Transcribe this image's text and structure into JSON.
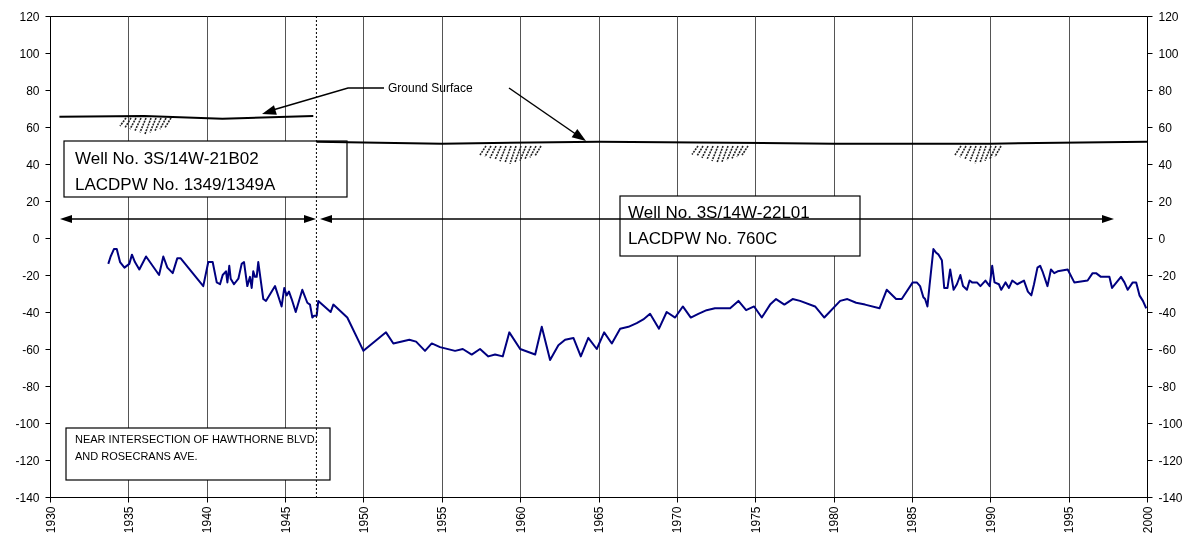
{
  "chart_data": {
    "type": "line",
    "annotations": [
      "Ground Surface",
      "Well No. 3S/14W-21B02\nLACDPW No. 1349/1349A",
      "Well No. 3S/14W-22L01\nLACDPW No. 760C",
      "NEAR  INTERSECTION OF HAWTHORNE BLVD.\nAND ROSECRANS AVE."
    ],
    "series": [
      {
        "color": "#000080",
        "x": [
          1933.72,
          1933.87,
          1934.08,
          1934.26,
          1934.47,
          1934.75,
          1935.06,
          1935.23,
          1935.42,
          1935.7,
          1936.13,
          1936.96,
          1937.23,
          1937.49,
          1937.83,
          1938.12,
          1938.34,
          1939.78,
          1940.1,
          1940.38,
          1940.64,
          1940.85,
          1941.02,
          1941.23,
          1941.32,
          1941.44,
          1941.53,
          1941.74,
          1942.02,
          1942.23,
          1942.38,
          1942.59,
          1942.76,
          1942.87,
          1942.97,
          1943.08,
          1943.19,
          1943.29,
          1943.61,
          1943.78,
          1944.36,
          1944.78,
          1944.95,
          1945.1,
          1945.25,
          1945.42,
          1945.68,
          1946.1,
          1946.42,
          1946.59,
          1946.74,
          1946.85,
          1947.02,
          1947.12,
          1947.91,
          1948.08,
          1948.97,
          1950,
          1951.44,
          1951.91,
          1952.93,
          1953.36,
          1953.93,
          1954.36,
          1954.89,
          1955.85,
          1956.34,
          1956.91,
          1957.44,
          1957.97,
          1958.4,
          1958.89,
          1959.31,
          1960,
          1960.96,
          1961.38,
          1961.91,
          1962.44,
          1962.87,
          1963.4,
          1963.87,
          1964.35,
          1964.89,
          1965.36,
          1965.85,
          1966.38,
          1966.91,
          1967.44,
          1967.86,
          1968.29,
          1968.86,
          1969.35,
          1969.89,
          1970.38,
          1970.89,
          1971.37,
          1971.9,
          1972.43,
          1973.4,
          1973.93,
          1974.42,
          1974.93,
          1975.42,
          1975.95,
          1976.33,
          1976.86,
          1977.39,
          1977.86,
          1978.82,
          1979.41,
          1980.42,
          1980.88,
          1981.44,
          1982.01,
          1982.93,
          1983.39,
          1983.99,
          1984.35,
          1985.05,
          1985.31,
          1985.52,
          1985.73,
          1985.84,
          1985.99,
          1986.12,
          1986.37,
          1986.55,
          1986.7,
          1986.91,
          1987.06,
          1987.27,
          1987.44,
          1987.66,
          1987.87,
          1988.09,
          1988.26,
          1988.51,
          1988.68,
          1988.84,
          1989.15,
          1989.37,
          1989.69,
          1989.96,
          1990.12,
          1990.27,
          1990.55,
          1990.7,
          1990.97,
          1991.19,
          1991.4,
          1991.72,
          1992.15,
          1992.4,
          1992.62,
          1992.79,
          1993.01,
          1993.18,
          1993.33,
          1993.65,
          1993.87,
          1994.08,
          1994.3,
          1994.94,
          1995.36,
          1996.21,
          1996.53,
          1996.75,
          1997.06,
          1997.6,
          1997.77,
          1998.34,
          1998.56,
          1998.77,
          1999.09,
          1999.31,
          1999.52,
          1999.74,
          1999.95
        ],
        "values": [
          -14,
          -10,
          -6,
          -6,
          -13,
          -16,
          -14,
          -9,
          -13,
          -17,
          -10,
          -20,
          -10,
          -16,
          -19,
          -11,
          -11,
          -26,
          -13,
          -13,
          -24,
          -25,
          -20,
          -18,
          -24,
          -15,
          -22,
          -25,
          -22,
          -14,
          -13,
          -26,
          -21,
          -27,
          -18,
          -21,
          -21,
          -13,
          -33,
          -34,
          -26,
          -37,
          -27,
          -31,
          -29,
          -33,
          -40,
          -28,
          -35,
          -36,
          -43,
          -42,
          -42,
          -34,
          -40,
          -36,
          -43,
          -61,
          -51,
          -57,
          -55,
          -56,
          -61,
          -57,
          -59,
          -61,
          -60,
          -63,
          -60,
          -64,
          -63,
          -64,
          -51,
          -60,
          -63,
          -48,
          -66,
          -58,
          -55,
          -54,
          -64,
          -54,
          -60,
          -51,
          -57,
          -49,
          -48,
          -46,
          -44,
          -41,
          -49,
          -40,
          -43,
          -37,
          -43,
          -41,
          -39,
          -38,
          -38,
          -34,
          -39,
          -37,
          -43,
          -36,
          -33,
          -36,
          -33,
          -34,
          -37,
          -43,
          -34,
          -33,
          -35,
          -36,
          -38,
          -28,
          -33,
          -33,
          -24,
          -24,
          -26,
          -32,
          -33,
          -37,
          -26,
          -6,
          -8,
          -9,
          -12,
          -27,
          -27,
          -17,
          -28,
          -25,
          -20,
          -26,
          -28,
          -23,
          -24,
          -24,
          -26,
          -23,
          -26,
          -15,
          -24,
          -25,
          -28,
          -24,
          -27,
          -23,
          -25,
          -23,
          -29,
          -31,
          -25,
          -16,
          -15,
          -18,
          -26,
          -17,
          -19,
          -18,
          -17,
          -24,
          -23,
          -19,
          -19,
          -21,
          -21,
          -27,
          -21,
          -24,
          -28,
          -24,
          -24,
          -31,
          -34,
          -38
        ]
      },
      {
        "color": "#000000",
        "x": [
          1930.6,
          1936,
          1941,
          1946.8
        ],
        "values": [
          65.5,
          66,
          64.5,
          66
        ]
      },
      {
        "color": "#000000",
        "x": [
          1947,
          1955,
          1965,
          1980,
          1990,
          2000
        ],
        "values": [
          52,
          51,
          52,
          51,
          51,
          52
        ]
      }
    ],
    "xlim": [
      1930,
      2000
    ],
    "xticks": [
      1930,
      1935,
      1940,
      1945,
      1950,
      1955,
      1960,
      1965,
      1970,
      1975,
      1980,
      1985,
      1990,
      1995,
      2000
    ],
    "ylim": [
      -140,
      120
    ],
    "yticks": [
      -140,
      -120,
      -100,
      -80,
      -60,
      -40,
      -20,
      0,
      20,
      40,
      60,
      80,
      100,
      120
    ],
    "y2lim": [
      -140,
      120
    ],
    "y2ticks": [
      -140,
      -120,
      -100,
      -80,
      -60,
      -40,
      -20,
      0,
      20,
      40,
      60,
      80,
      100,
      120
    ],
    "ref_lines": [
      {
        "axis": "x",
        "value": 1947,
        "color": "#000000",
        "line_style": "dotted"
      }
    ],
    "grid": "x"
  }
}
